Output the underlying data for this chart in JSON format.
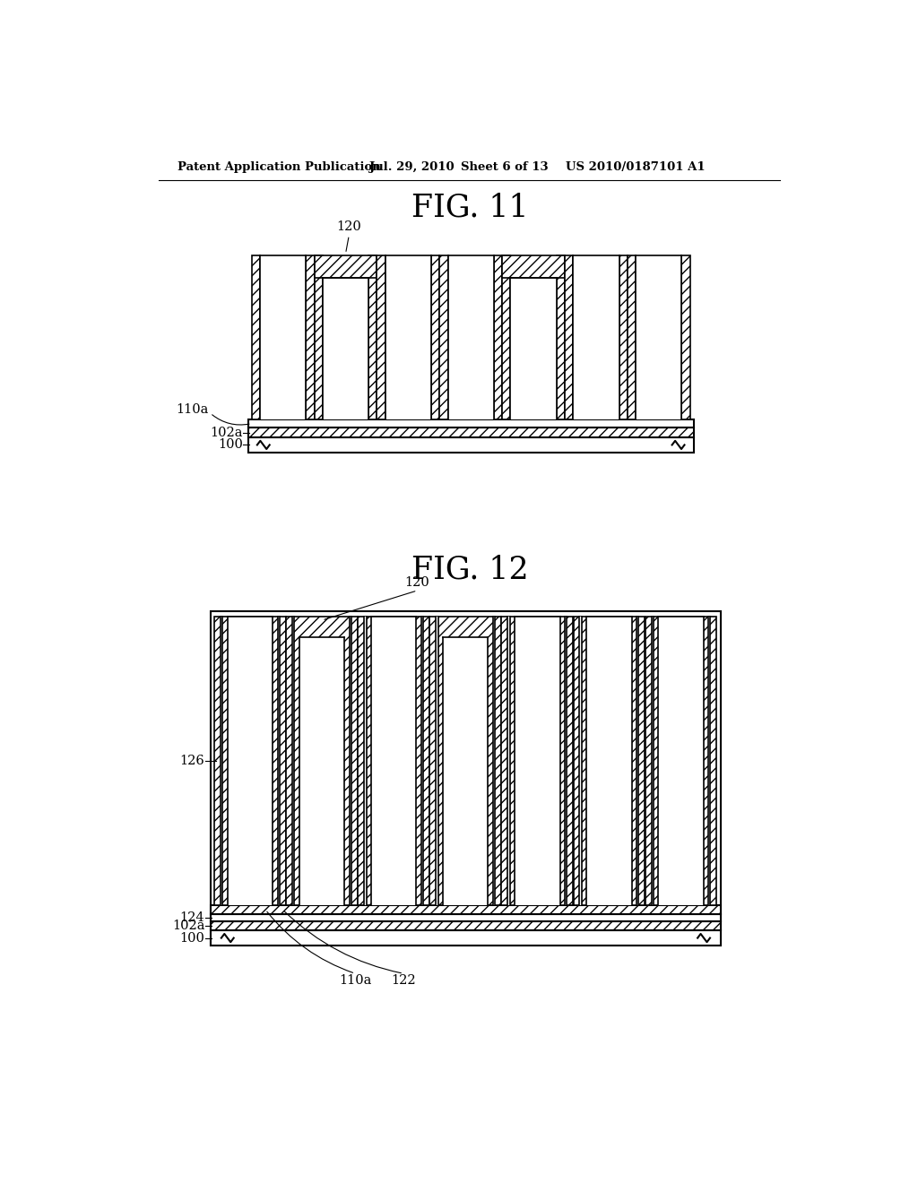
{
  "bg_color": "#ffffff",
  "header_text": "Patent Application Publication",
  "header_date": "Jul. 29, 2010",
  "header_sheet": "Sheet 6 of 13",
  "header_patent": "US 2010/0187101 A1",
  "fig11_title": "FIG. 11",
  "fig12_title": "FIG. 12",
  "fig11_label_120": "120",
  "fig11_label_110a": "110a",
  "fig11_label_102a": "102a",
  "fig11_label_100": "100",
  "fig12_label_120": "120",
  "fig12_label_126": "126",
  "fig12_label_124": "124",
  "fig12_label_102a": "102a",
  "fig12_label_100": "100",
  "fig12_label_110a": "110a",
  "fig12_label_122": "122"
}
